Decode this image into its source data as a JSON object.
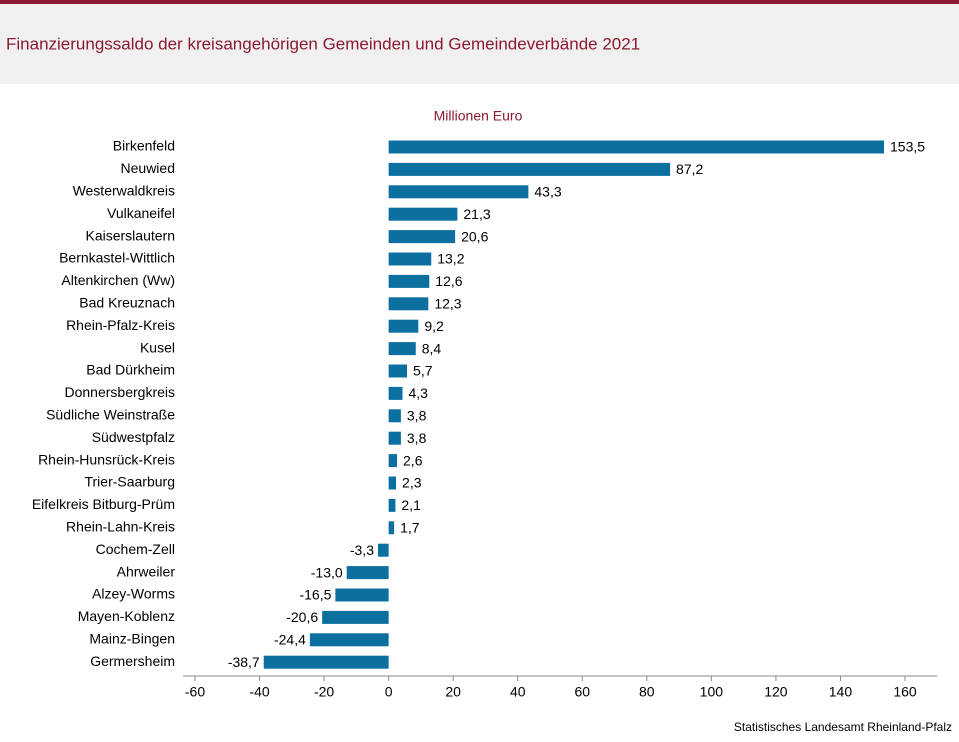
{
  "chart_data": {
    "type": "hbar",
    "title": "Finanzierungssaldo der kreisangehörigen Gemeinden und Gemeindeverbände 2021",
    "unit_label": "Millionen Euro",
    "source": "Statistisches Landesamt Rheinland-Pfalz",
    "categories": [
      "Birkenfeld",
      "Neuwied",
      "Westerwaldkreis",
      "Vulkaneifel",
      "Kaiserslautern",
      "Bernkastel-Wittlich",
      "Altenkirchen (Ww)",
      "Bad Kreuznach",
      "Rhein-Pfalz-Kreis",
      "Kusel",
      "Bad Dürkheim",
      "Donnersbergkreis",
      "Südliche Weinstraße",
      "Südwestpfalz",
      "Rhein-Hunsrück-Kreis",
      "Trier-Saarburg",
      "Eifelkreis Bitburg-Prüm",
      "Rhein-Lahn-Kreis",
      "Cochem-Zell",
      "Ahrweiler",
      "Alzey-Worms",
      "Mayen-Koblenz",
      "Mainz-Bingen",
      "Germersheim"
    ],
    "values": [
      153.5,
      87.2,
      43.3,
      21.3,
      20.6,
      13.2,
      12.6,
      12.3,
      9.2,
      8.4,
      5.7,
      4.3,
      3.8,
      3.8,
      2.6,
      2.3,
      2.1,
      1.7,
      -3.3,
      -13.0,
      -16.5,
      -20.6,
      -24.4,
      -38.7
    ],
    "value_labels": [
      "153,5",
      "87,2",
      "43,3",
      "21,3",
      "20,6",
      "13,2",
      "12,6",
      "12,3",
      "9,2",
      "8,4",
      "5,7",
      "4,3",
      "3,8",
      "3,8",
      "2,6",
      "2,3",
      "2,1",
      "1,7",
      "-3,3",
      "-13,0",
      "-16,5",
      "-20,6",
      "-24,4",
      "-38,7"
    ],
    "color": "#0b6fa0",
    "xlim": [
      -60,
      170
    ],
    "xticks": [
      -60,
      -40,
      -20,
      0,
      20,
      40,
      60,
      80,
      100,
      120,
      140,
      160
    ]
  }
}
